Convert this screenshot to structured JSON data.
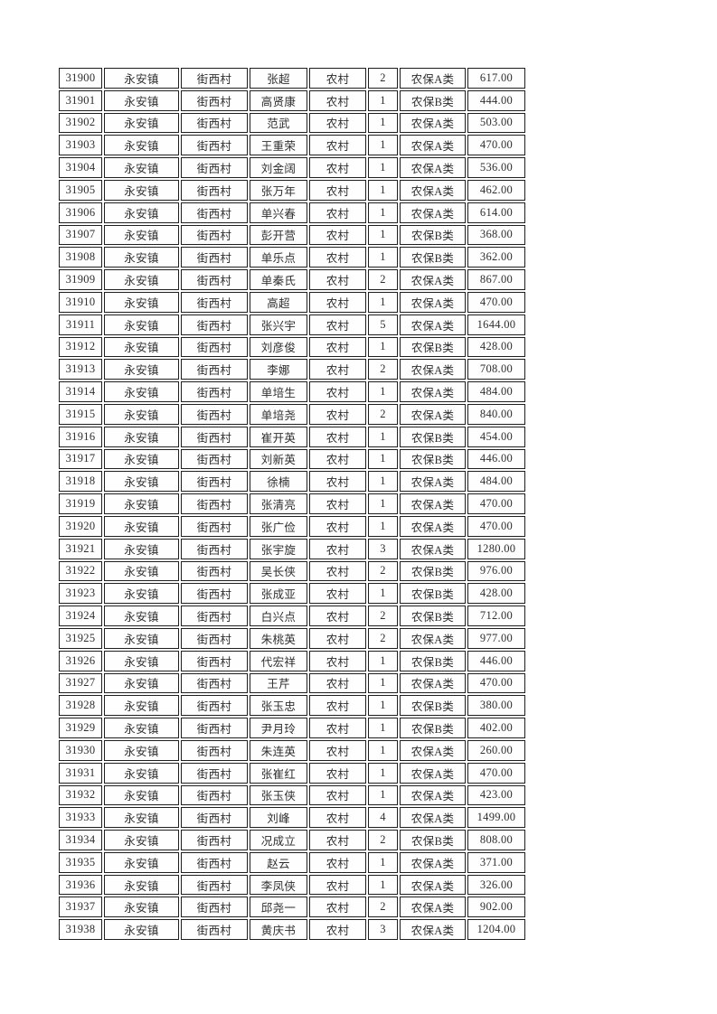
{
  "colors": {
    "page_background": "#ffffff",
    "cell_border": "#1f1f1f",
    "text": "#2e2e2e"
  },
  "table": {
    "column_names": [
      "record_id",
      "town",
      "village",
      "person_name",
      "household_type",
      "person_count",
      "insurance_category",
      "amount"
    ],
    "rows": [
      [
        "31900",
        "永安镇",
        "街西村",
        "张超",
        "农村",
        "2",
        "农保A类",
        "617.00"
      ],
      [
        "31901",
        "永安镇",
        "街西村",
        "高贤康",
        "农村",
        "1",
        "农保B类",
        "444.00"
      ],
      [
        "31902",
        "永安镇",
        "街西村",
        "范武",
        "农村",
        "1",
        "农保A类",
        "503.00"
      ],
      [
        "31903",
        "永安镇",
        "街西村",
        "王重荣",
        "农村",
        "1",
        "农保A类",
        "470.00"
      ],
      [
        "31904",
        "永安镇",
        "街西村",
        "刘金阔",
        "农村",
        "1",
        "农保A类",
        "536.00"
      ],
      [
        "31905",
        "永安镇",
        "街西村",
        "张万年",
        "农村",
        "1",
        "农保A类",
        "462.00"
      ],
      [
        "31906",
        "永安镇",
        "街西村",
        "单兴春",
        "农村",
        "1",
        "农保A类",
        "614.00"
      ],
      [
        "31907",
        "永安镇",
        "街西村",
        "彭开营",
        "农村",
        "1",
        "农保B类",
        "368.00"
      ],
      [
        "31908",
        "永安镇",
        "街西村",
        "单乐点",
        "农村",
        "1",
        "农保B类",
        "362.00"
      ],
      [
        "31909",
        "永安镇",
        "街西村",
        "单秦氏",
        "农村",
        "2",
        "农保A类",
        "867.00"
      ],
      [
        "31910",
        "永安镇",
        "街西村",
        "高超",
        "农村",
        "1",
        "农保A类",
        "470.00"
      ],
      [
        "31911",
        "永安镇",
        "街西村",
        "张兴宇",
        "农村",
        "5",
        "农保A类",
        "1644.00"
      ],
      [
        "31912",
        "永安镇",
        "街西村",
        "刘彦俊",
        "农村",
        "1",
        "农保B类",
        "428.00"
      ],
      [
        "31913",
        "永安镇",
        "街西村",
        "李娜",
        "农村",
        "2",
        "农保A类",
        "708.00"
      ],
      [
        "31914",
        "永安镇",
        "街西村",
        "单培生",
        "农村",
        "1",
        "农保A类",
        "484.00"
      ],
      [
        "31915",
        "永安镇",
        "街西村",
        "单培尧",
        "农村",
        "2",
        "农保A类",
        "840.00"
      ],
      [
        "31916",
        "永安镇",
        "街西村",
        "崔开英",
        "农村",
        "1",
        "农保B类",
        "454.00"
      ],
      [
        "31917",
        "永安镇",
        "街西村",
        "刘新英",
        "农村",
        "1",
        "农保B类",
        "446.00"
      ],
      [
        "31918",
        "永安镇",
        "街西村",
        "徐楠",
        "农村",
        "1",
        "农保A类",
        "484.00"
      ],
      [
        "31919",
        "永安镇",
        "街西村",
        "张清亮",
        "农村",
        "1",
        "农保A类",
        "470.00"
      ],
      [
        "31920",
        "永安镇",
        "街西村",
        "张广俭",
        "农村",
        "1",
        "农保A类",
        "470.00"
      ],
      [
        "31921",
        "永安镇",
        "街西村",
        "张宇旋",
        "农村",
        "3",
        "农保A类",
        "1280.00"
      ],
      [
        "31922",
        "永安镇",
        "街西村",
        "吴长侠",
        "农村",
        "2",
        "农保B类",
        "976.00"
      ],
      [
        "31923",
        "永安镇",
        "街西村",
        "张成亚",
        "农村",
        "1",
        "农保B类",
        "428.00"
      ],
      [
        "31924",
        "永安镇",
        "街西村",
        "白兴点",
        "农村",
        "2",
        "农保B类",
        "712.00"
      ],
      [
        "31925",
        "永安镇",
        "街西村",
        "朱桃英",
        "农村",
        "2",
        "农保A类",
        "977.00"
      ],
      [
        "31926",
        "永安镇",
        "街西村",
        "代宏祥",
        "农村",
        "1",
        "农保B类",
        "446.00"
      ],
      [
        "31927",
        "永安镇",
        "街西村",
        "王芹",
        "农村",
        "1",
        "农保A类",
        "470.00"
      ],
      [
        "31928",
        "永安镇",
        "街西村",
        "张玉忠",
        "农村",
        "1",
        "农保B类",
        "380.00"
      ],
      [
        "31929",
        "永安镇",
        "街西村",
        "尹月玲",
        "农村",
        "1",
        "农保B类",
        "402.00"
      ],
      [
        "31930",
        "永安镇",
        "街西村",
        "朱连英",
        "农村",
        "1",
        "农保A类",
        "260.00"
      ],
      [
        "31931",
        "永安镇",
        "街西村",
        "张崔红",
        "农村",
        "1",
        "农保A类",
        "470.00"
      ],
      [
        "31932",
        "永安镇",
        "街西村",
        "张玉侠",
        "农村",
        "1",
        "农保A类",
        "423.00"
      ],
      [
        "31933",
        "永安镇",
        "街西村",
        "刘峰",
        "农村",
        "4",
        "农保A类",
        "1499.00"
      ],
      [
        "31934",
        "永安镇",
        "街西村",
        "况成立",
        "农村",
        "2",
        "农保B类",
        "808.00"
      ],
      [
        "31935",
        "永安镇",
        "街西村",
        "赵云",
        "农村",
        "1",
        "农保A类",
        "371.00"
      ],
      [
        "31936",
        "永安镇",
        "街西村",
        "李凤侠",
        "农村",
        "1",
        "农保A类",
        "326.00"
      ],
      [
        "31937",
        "永安镇",
        "街西村",
        "邱尧一",
        "农村",
        "2",
        "农保A类",
        "902.00"
      ],
      [
        "31938",
        "永安镇",
        "街西村",
        "黄庆书",
        "农村",
        "3",
        "农保A类",
        "1204.00"
      ]
    ]
  }
}
